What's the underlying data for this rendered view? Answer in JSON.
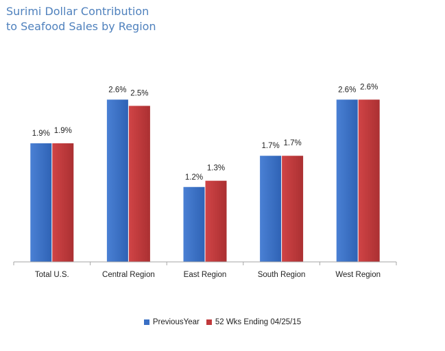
{
  "title_lines": [
    "Surimi Dollar Contribution",
    "to Seafood Sales by Region"
  ],
  "colors": {
    "title": "#4f81bd",
    "previous_year": "#3a6fc4",
    "previous_year_dark": "#2a5aa6",
    "current": "#c0393b",
    "current_dark": "#9b2a2c",
    "axis": "#a6a6a6"
  },
  "legend": {
    "previous_year": "PreviousYear",
    "current": "52 Wks Ending 04/25/15"
  },
  "chart_data": {
    "type": "bar",
    "title": "Surimi Dollar Contribution to Seafood Sales by Region",
    "categories": [
      "Total U.S.",
      "Central Region",
      "East Region",
      "South Region",
      "West Region"
    ],
    "series": [
      {
        "name": "PreviousYear",
        "values": [
          1.9,
          2.6,
          1.2,
          1.7,
          2.6
        ],
        "labels": [
          "1.9%",
          "2.6%",
          "1.2%",
          "1.7%",
          "2.6%"
        ]
      },
      {
        "name": "52 Wks Ending 04/25/15",
        "values": [
          1.9,
          2.5,
          1.3,
          1.7,
          2.6
        ],
        "labels": [
          "1.9%",
          "2.5%",
          "1.3%",
          "1.7%",
          "2.6%"
        ]
      }
    ],
    "ylim": [
      0,
      2.9
    ],
    "xlabel": "",
    "ylabel": "",
    "grid": false,
    "legend_position": "bottom"
  }
}
